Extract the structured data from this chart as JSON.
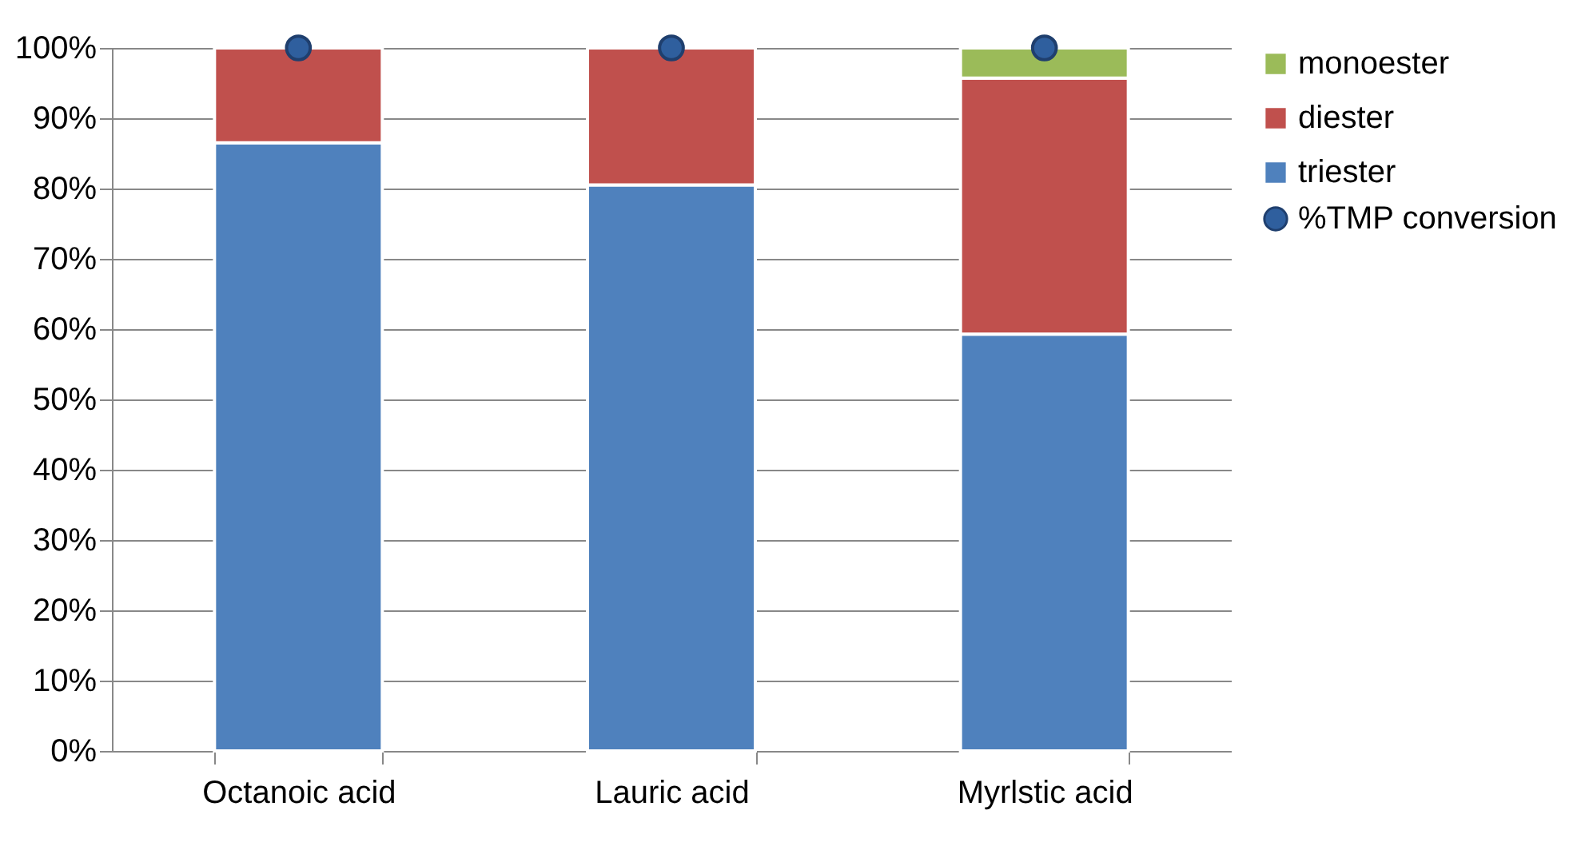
{
  "chart_data": {
    "type": "bar",
    "stacked": true,
    "categories": [
      "Octanoic acid",
      "Lauric acid",
      "Myrlstic acid"
    ],
    "series": [
      {
        "name": "triester",
        "color": "#4f81bd",
        "values": [
          86.5,
          80.5,
          59.3
        ]
      },
      {
        "name": "diester",
        "color": "#c0504d",
        "values": [
          13.5,
          19.5,
          36.4
        ]
      },
      {
        "name": "monoester",
        "color": "#9bbb59",
        "values": [
          null,
          null,
          4.3
        ]
      },
      {
        "name": "%TMP conversion",
        "type": "scatter",
        "color": "#2f5f9e",
        "x": [
          "Octanoic acid",
          "Lauric acid",
          "Myrlstic acid"
        ],
        "values": [
          100,
          100,
          100
        ]
      }
    ],
    "ylim": [
      0,
      100
    ],
    "yticks": [
      {
        "value": 0,
        "label": "0%"
      },
      {
        "value": 10,
        "label": "10%"
      },
      {
        "value": 20,
        "label": "20%"
      },
      {
        "value": 30,
        "label": "30%"
      },
      {
        "value": 40,
        "label": "40%"
      },
      {
        "value": 50,
        "label": "50%"
      },
      {
        "value": 60,
        "label": "60%"
      },
      {
        "value": 70,
        "label": "70%"
      },
      {
        "value": 80,
        "label": "80%"
      },
      {
        "value": 90,
        "label": "90%"
      },
      {
        "value": 100,
        "label": "100%"
      }
    ],
    "grid": "y",
    "legend": "right",
    "marker": "circle"
  }
}
